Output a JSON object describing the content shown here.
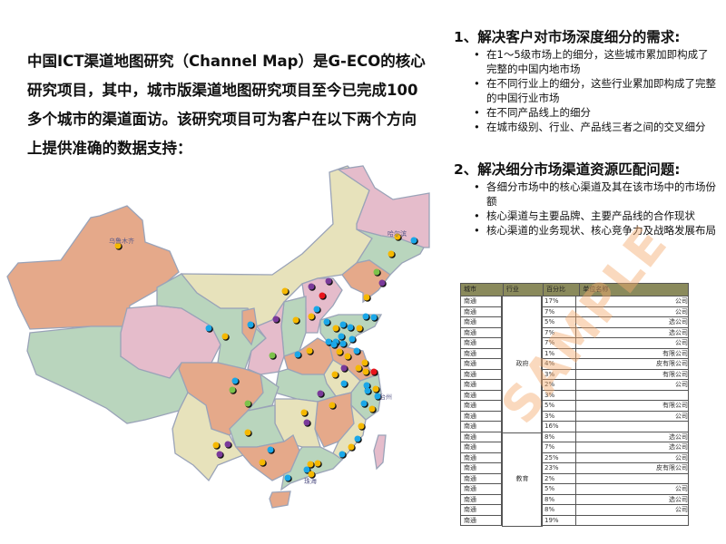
{
  "intro": "中国ICT渠道地图研究（Channel Map）是G-ECO的核心研究项目，其中，城市版渠道地图研究项目至今已完成100多个城市的渠道面访。该研究项目可为客户在以下两个方向上提供准确的数据支持：",
  "section1": {
    "title": "1、解决客户对市场深度细分的需求:",
    "bullets": [
      "在1～5级市场上的细分，这些城市累加即构成了完整的中国内地市场",
      "在不同行业上的细分，这些行业累加即构成了完整的中国行业市场",
      "在不同产品线上的细分",
      "在城市级别、行业、产品线三者之间的交叉细分"
    ]
  },
  "section2": {
    "title": "2、解决细分市场渠道资源匹配问题:",
    "bullets": [
      "各细分市场中的核心渠道及其在该市场中的市场份额",
      "核心渠道与主要品牌、主要产品线的合作现状",
      "核心渠道的业务现状、核心竞争力及战略发展布局"
    ]
  },
  "map": {
    "labels": [
      "乌鲁木齐",
      "哈尔滨",
      "台州",
      "珠海"
    ],
    "dot_colors": {
      "yellow": "#f5b800",
      "blue": "#1aa7e8",
      "purple": "#7a3a9a",
      "green": "#7cc24a",
      "red": "#e8141b"
    }
  },
  "table": {
    "headers": [
      "城市",
      "行业",
      "百分比",
      "单位名称"
    ],
    "groups": [
      {
        "industry": "政府",
        "rows": [
          [
            "南通",
            "17%",
            "公司"
          ],
          [
            "南通",
            "7%",
            "公司"
          ],
          [
            "南通",
            "5%",
            "选公司"
          ],
          [
            "南通",
            "7%",
            "选公司"
          ],
          [
            "南通",
            "7%",
            "公司"
          ],
          [
            "南通",
            "1%",
            "有限公司"
          ],
          [
            "南通",
            "4%",
            "皮有限公司"
          ],
          [
            "南通",
            "3%",
            "有限公司"
          ],
          [
            "南通",
            "2%",
            "公司"
          ],
          [
            "南通",
            "3%",
            ""
          ],
          [
            "南通",
            "5%",
            "有限公司"
          ],
          [
            "南通",
            "3%",
            "公司"
          ],
          [
            "南通",
            "16%",
            ""
          ]
        ]
      },
      {
        "industry": "教育",
        "rows": [
          [
            "南通",
            "8%",
            "选公司"
          ],
          [
            "南通",
            "7%",
            "选公司"
          ],
          [
            "南通",
            "25%",
            "公司"
          ],
          [
            "南通",
            "23%",
            "皮有限公司"
          ],
          [
            "南通",
            "2%",
            ""
          ],
          [
            "南通",
            "5%",
            "公司"
          ],
          [
            "南通",
            "8%",
            "选公司"
          ],
          [
            "南通",
            "8%",
            "公司"
          ],
          [
            "南通",
            "19%",
            ""
          ]
        ]
      }
    ],
    "watermark": "SAMPLE"
  }
}
